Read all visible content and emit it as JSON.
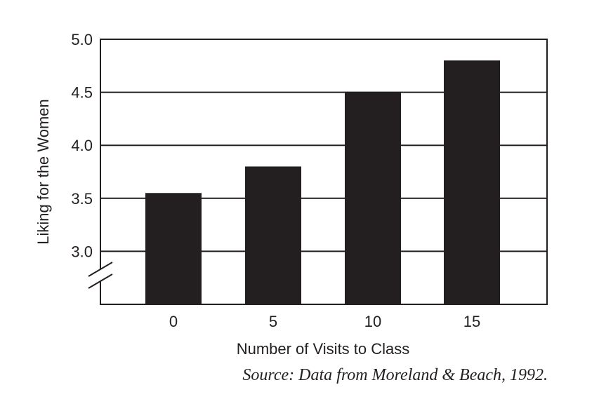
{
  "chart_data": {
    "type": "bar",
    "categories": [
      "0",
      "5",
      "10",
      "15"
    ],
    "values": [
      3.55,
      3.8,
      4.5,
      4.8
    ],
    "xlabel": "Number of Visits to Class",
    "ylabel": "Liking for the Women",
    "ylim": [
      2.5,
      5.0
    ],
    "yticks": [
      "3.0",
      "3.5",
      "4.0",
      "4.5",
      "5.0"
    ],
    "ytick_values": [
      3.0,
      3.5,
      4.0,
      4.5,
      5.0
    ],
    "grid": "horizontal",
    "axis_break": true,
    "bar_color": "#231f20"
  },
  "source": "Source: Data from Moreland & Beach, 1992."
}
